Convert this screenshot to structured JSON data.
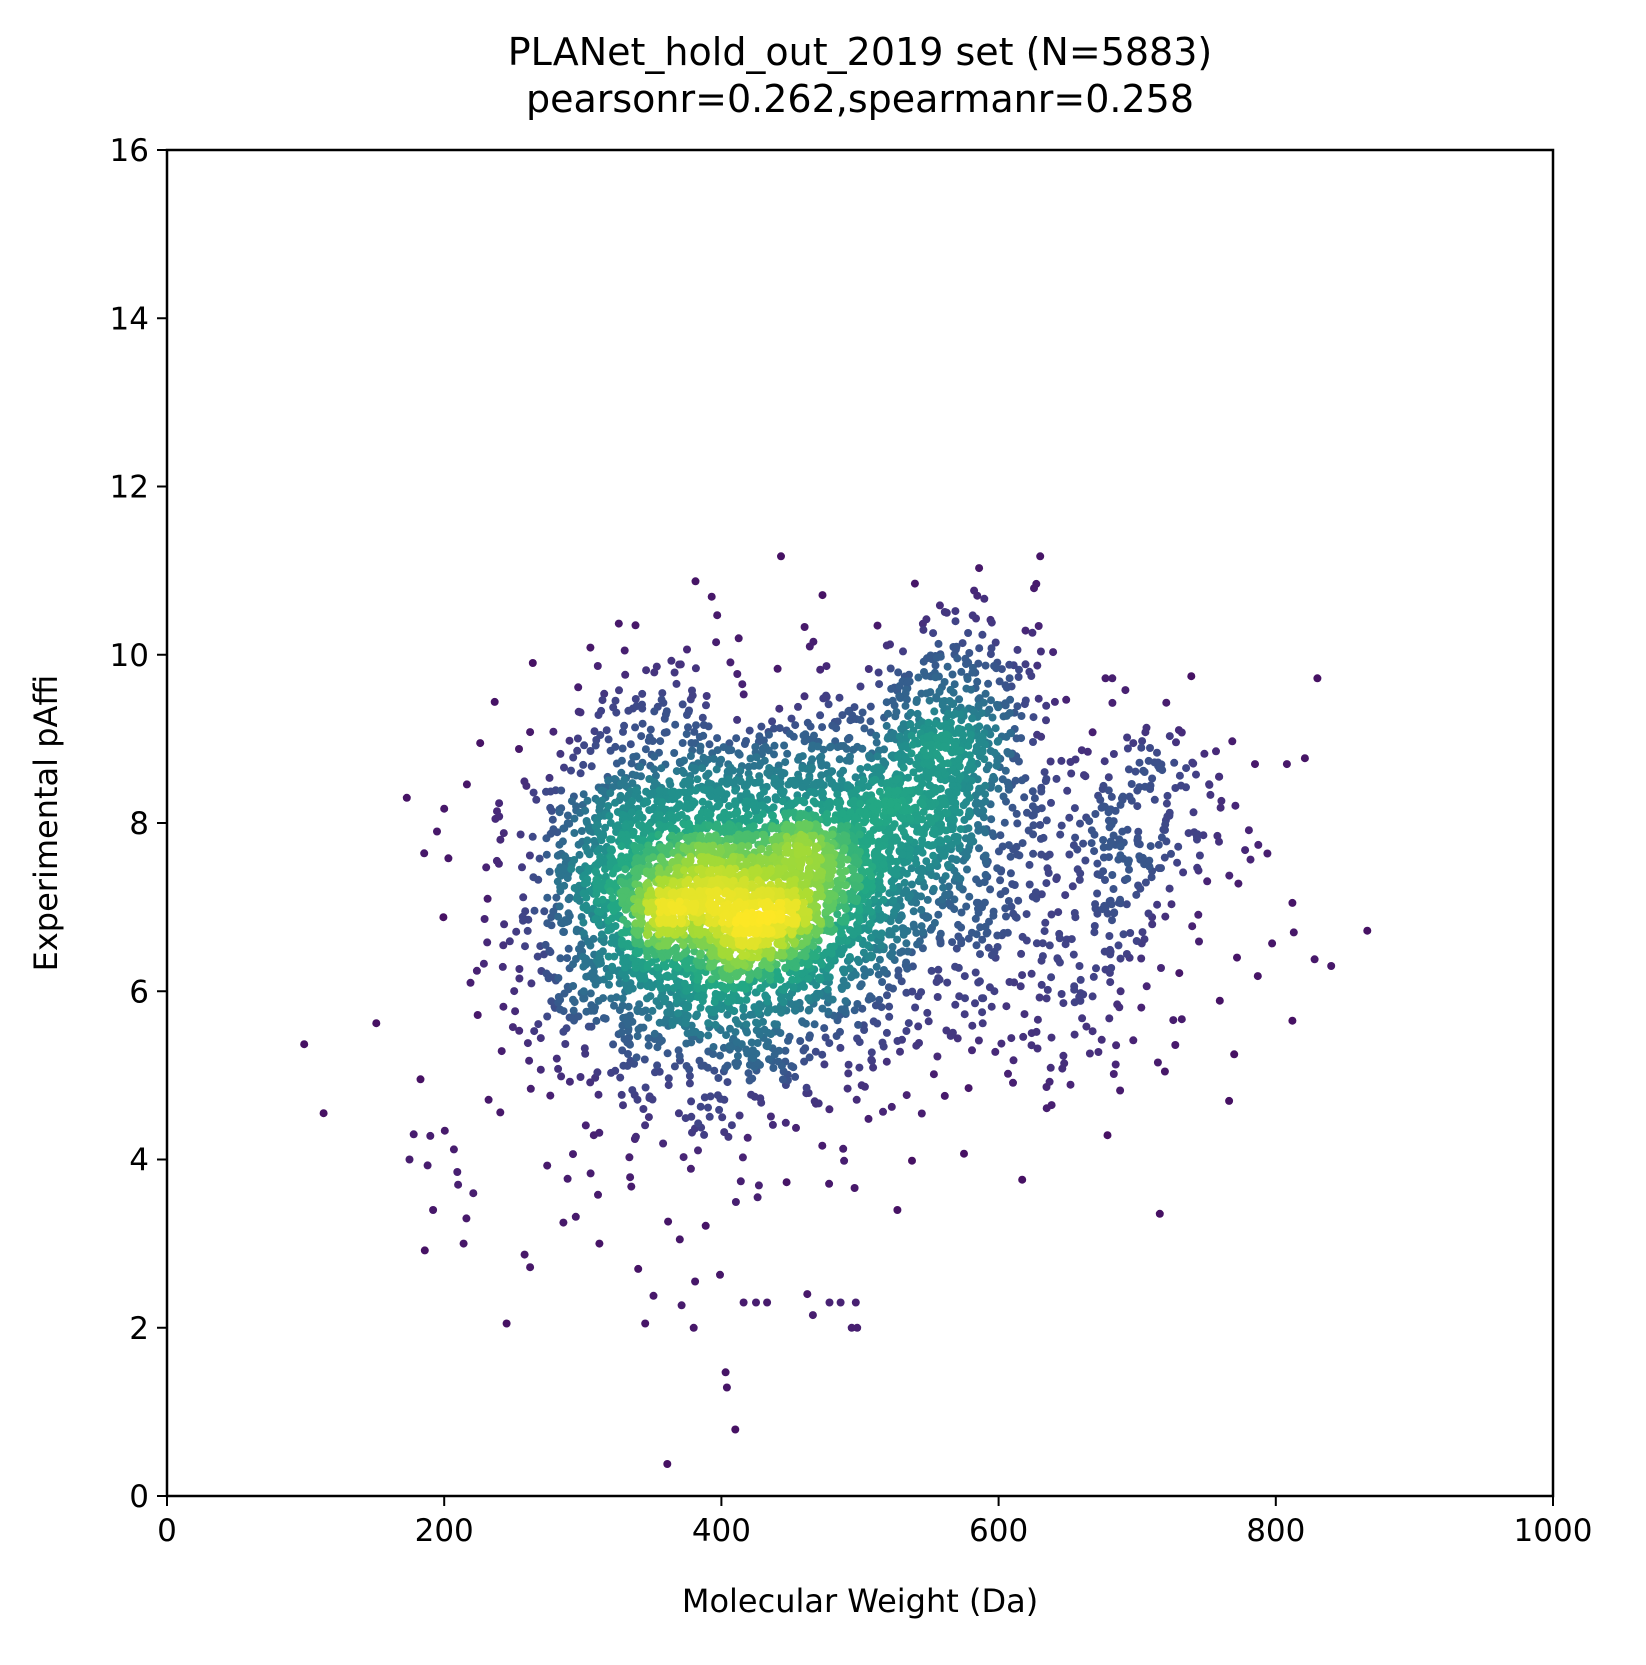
{
  "chart_data": {
    "type": "scatter",
    "title_line1": "PLANet_hold_out_2019 set (N=5883)",
    "title_line2": "pearsonr=0.262,spearmanr=0.258",
    "xlabel": "Molecular Weight (Da)",
    "ylabel": "Experimental pAffi",
    "xlim": [
      0,
      1000
    ],
    "ylim": [
      0,
      16
    ],
    "x_ticks": [
      0,
      200,
      400,
      600,
      800,
      1000
    ],
    "y_ticks": [
      0,
      2,
      4,
      6,
      8,
      10,
      12,
      14,
      16
    ],
    "x_tick_labels": [
      "0",
      "200",
      "400",
      "600",
      "800",
      "1000"
    ],
    "y_tick_labels": [
      "0",
      "2",
      "4",
      "6",
      "8",
      "10",
      "12",
      "14",
      "16"
    ],
    "grid": false,
    "colormap": "viridis (point density)",
    "colors": {
      "low_density": "#440154",
      "mid_low": "#3b528b",
      "mid": "#21918c",
      "mid_high": "#5ec962",
      "high_density": "#fde725"
    },
    "n_points": 5883,
    "outlier_points": [
      [
        99,
        5.37
      ],
      [
        113,
        4.55
      ],
      [
        151,
        5.62
      ],
      [
        173,
        8.3
      ],
      [
        175,
        4.0
      ],
      [
        178,
        4.3
      ],
      [
        186,
        2.92
      ],
      [
        188,
        3.93
      ],
      [
        190,
        4.28
      ],
      [
        192,
        3.4
      ],
      [
        200,
        8.17
      ],
      [
        203,
        7.58
      ],
      [
        207,
        4.12
      ],
      [
        210,
        3.7
      ],
      [
        214,
        3.0
      ],
      [
        216,
        3.3
      ],
      [
        219,
        6.1
      ],
      [
        221,
        3.6
      ],
      [
        226,
        8.95
      ],
      [
        232,
        4.71
      ],
      [
        238,
        7.55
      ],
      [
        243,
        7.88
      ],
      [
        254,
        8.88
      ],
      [
        262,
        9.08
      ],
      [
        245,
        2.05
      ],
      [
        262,
        2.72
      ],
      [
        258,
        2.87
      ],
      [
        326,
        10.37
      ],
      [
        338,
        10.35
      ],
      [
        361,
        0.38
      ],
      [
        393,
        10.69
      ],
      [
        397,
        10.47
      ],
      [
        403,
        1.47
      ],
      [
        404,
        1.29
      ],
      [
        410,
        0.79
      ],
      [
        443,
        11.17
      ],
      [
        460,
        10.33
      ],
      [
        630,
        11.17
      ],
      [
        682,
        9.72
      ],
      [
        721,
        9.43
      ],
      [
        830,
        9.72
      ],
      [
        821,
        8.77
      ],
      [
        808,
        8.7
      ],
      [
        785,
        8.7
      ],
      [
        759,
        8.55
      ],
      [
        866,
        6.72
      ],
      [
        840,
        6.3
      ],
      [
        828,
        6.38
      ],
      [
        812,
        7.05
      ],
      [
        813,
        6.7
      ],
      [
        812,
        5.65
      ],
      [
        773,
        7.28
      ],
      [
        772,
        6.4
      ],
      [
        787,
        6.18
      ],
      [
        770,
        5.25
      ],
      [
        617,
        3.76
      ],
      [
        527,
        3.4
      ],
      [
        498,
        2.0
      ],
      [
        494,
        2.0
      ],
      [
        497,
        2.3
      ],
      [
        486,
        2.3
      ],
      [
        478,
        2.3
      ],
      [
        462,
        2.4
      ],
      [
        466,
        2.15
      ],
      [
        433,
        2.3
      ],
      [
        425,
        2.3
      ],
      [
        416,
        2.3
      ],
      [
        399,
        2.63
      ],
      [
        381,
        2.55
      ],
      [
        380,
        2.0
      ],
      [
        351,
        2.38
      ],
      [
        345,
        2.05
      ],
      [
        340,
        2.7
      ],
      [
        286,
        3.25
      ],
      [
        312,
        3.0
      ],
      [
        311,
        3.58
      ],
      [
        370,
        3.05
      ]
    ]
  }
}
